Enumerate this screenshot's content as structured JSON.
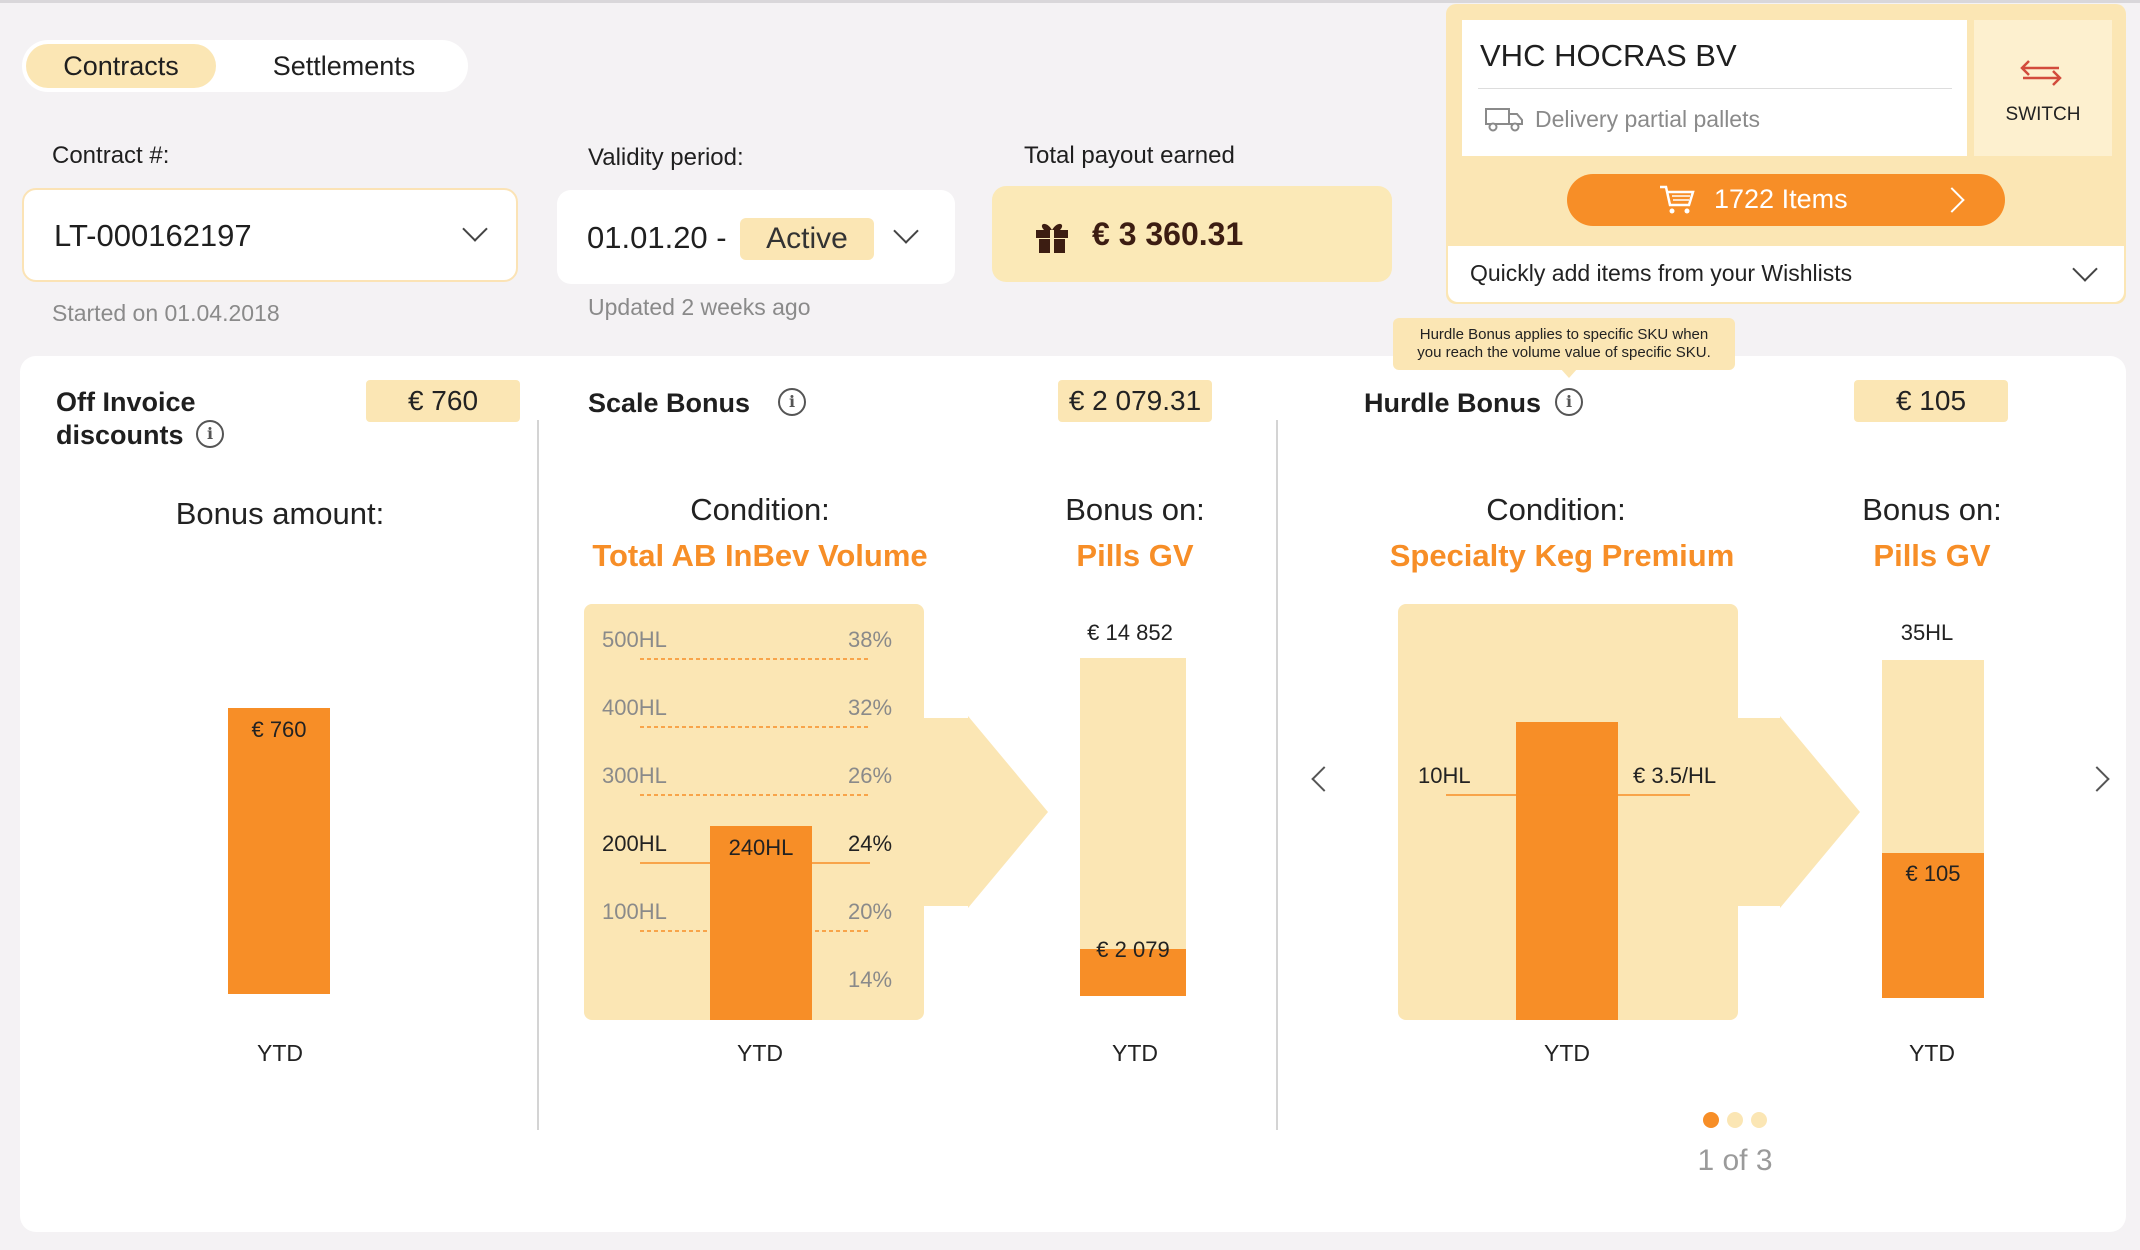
{
  "tabs": [
    {
      "label": "Contracts",
      "active": true
    },
    {
      "label": "Settlements",
      "active": false
    }
  ],
  "contract": {
    "label": "Contract #:",
    "value": "LT-000162197",
    "started": "Started on 01.04.2018"
  },
  "validity": {
    "label": "Validity period:",
    "value": "01.01.20 -",
    "status": "Active",
    "updated": "Updated 2 weeks ago"
  },
  "payout": {
    "label": "Total payout earned",
    "value": "€ 3 360.31",
    "icon": "gift-icon"
  },
  "account": {
    "name": "VHC HOCRAS BV",
    "delivery": "Delivery partial pallets",
    "switch_label": "SWITCH",
    "items_label": "1722 Items",
    "wishlist_label": "Quickly add items from your Wishlists"
  },
  "colors": {
    "accent": "#f78e27",
    "light": "#fbe6b4",
    "switch_icon": "#d24b3c"
  },
  "off_invoice": {
    "title_line1": "Off Invoice",
    "title_line2": "discounts",
    "amount": "€ 760",
    "heading": "Bonus amount:",
    "bar_label": "€ 760",
    "ytd": "YTD"
  },
  "scale": {
    "title": "Scale Bonus",
    "amount": "€ 2 079.31",
    "condition_label": "Condition:",
    "condition": "Total AB InBev Volume",
    "bonus_on_label": "Bonus on:",
    "bonus_on": "Pills GV",
    "tiers": [
      {
        "volume": "500HL",
        "pct": "38%"
      },
      {
        "volume": "400HL",
        "pct": "32%"
      },
      {
        "volume": "300HL",
        "pct": "26%"
      },
      {
        "volume": "200HL",
        "pct": "24%"
      },
      {
        "volume": "100HL",
        "pct": "20%"
      }
    ],
    "base_pct": "14%",
    "current_volume": "240HL",
    "ytd": "YTD",
    "target_value": "€ 14 852",
    "earned_value": "€ 2 079",
    "earned_fraction": 0.14,
    "ytd2": "YTD"
  },
  "hurdle": {
    "title": "Hurdle Bonus",
    "tooltip_line1": "Hurdle Bonus applies to specific SKU when",
    "tooltip_line2": "you reach the volume value of specific SKU.",
    "amount": "€ 105",
    "condition_label": "Condition:",
    "condition": "Specialty Keg Premium",
    "bonus_on_label": "Bonus on:",
    "bonus_on": "Pills GV",
    "threshold": "10HL",
    "rate": "€ 3.5/HL",
    "ytd": "YTD",
    "target_value": "35HL",
    "earned_value": "€ 105",
    "earned_fraction": 0.43,
    "ytd2": "YTD"
  },
  "pager": {
    "label": "1 of 3",
    "current": 1,
    "total": 3
  }
}
